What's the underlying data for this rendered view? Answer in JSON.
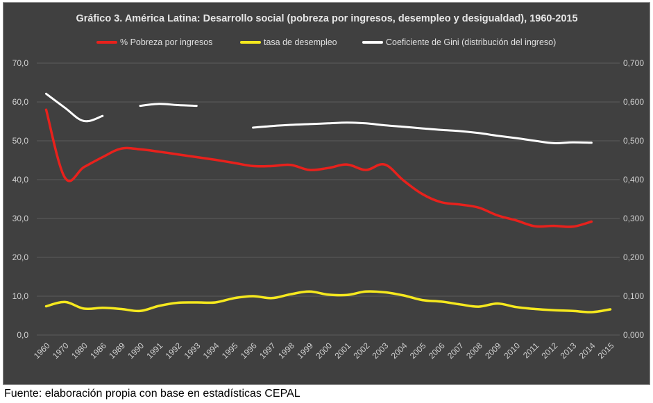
{
  "chart_data": {
    "type": "line",
    "title": "Gráfico 3. América Latina: Desarrollo social (pobreza por ingresos, desempleo y desigualdad), 1960-2015",
    "categories": [
      "1960",
      "1970",
      "1980",
      "1986",
      "1989",
      "1990",
      "1991",
      "1992",
      "1993",
      "1994",
      "1995",
      "1996",
      "1997",
      "1998",
      "1999",
      "2000",
      "2001",
      "2002",
      "2003",
      "2004",
      "2005",
      "2006",
      "2007",
      "2008",
      "2009",
      "2010",
      "2011",
      "2012",
      "2013",
      "2014",
      "2015"
    ],
    "y_left": {
      "min": 0,
      "max": 70,
      "step": 10,
      "tick_labels": [
        "0,0",
        "10,0",
        "20,0",
        "30,0",
        "40,0",
        "50,0",
        "60,0",
        "70,0"
      ]
    },
    "y_right": {
      "min": 0,
      "max": 0.7,
      "step": 0.1,
      "tick_labels": [
        "0,000",
        "0,100",
        "0,200",
        "0,300",
        "0,400",
        "0,500",
        "0,600",
        "0,700"
      ]
    },
    "grid": "horizontal",
    "legend_position": "top",
    "series": [
      {
        "name": "% Pobreza por ingresos",
        "axis": "left",
        "color": "#e8211c",
        "values": [
          58.0,
          40.5,
          43.2,
          45.8,
          48.0,
          47.8,
          47.2,
          46.5,
          45.8,
          45.1,
          44.3,
          43.5,
          43.5,
          43.8,
          42.5,
          43.0,
          43.9,
          42.5,
          43.9,
          39.8,
          36.3,
          34.2,
          33.6,
          32.8,
          30.8,
          29.5,
          28.0,
          28.1,
          27.9,
          29.2,
          null
        ],
        "style": "smooth"
      },
      {
        "name": "tasa de desempleo",
        "axis": "left",
        "color": "#f5e81e",
        "values": [
          7.4,
          8.5,
          6.8,
          7.0,
          6.7,
          6.2,
          7.5,
          8.3,
          8.4,
          8.4,
          9.5,
          10.0,
          9.5,
          10.5,
          11.2,
          10.4,
          10.3,
          11.2,
          11.0,
          10.2,
          9.0,
          8.6,
          7.9,
          7.3,
          8.1,
          7.2,
          6.7,
          6.4,
          6.2,
          5.9,
          6.6
        ],
        "style": "smooth"
      },
      {
        "name": "Coeficiente de Gini (distribución del ingreso)",
        "axis": "right",
        "color": "#ffffff",
        "segments": [
          {
            "categories": [
              "1960",
              "1970",
              "1980",
              "1986"
            ],
            "values": [
              0.621,
              0.585,
              0.551,
              0.564
            ]
          },
          {
            "categories": [
              "1990",
              "1991",
              "1992",
              "1993"
            ],
            "values": [
              0.59,
              0.595,
              0.592,
              0.59
            ]
          },
          {
            "categories": [
              "1996",
              "1997",
              "1998",
              "1999",
              "2000",
              "2001",
              "2002",
              "2003",
              "2004",
              "2005",
              "2006",
              "2007",
              "2008",
              "2009",
              "2010",
              "2011",
              "2012",
              "2013",
              "2014"
            ],
            "values": [
              0.534,
              0.538,
              0.541,
              0.543,
              0.545,
              0.547,
              0.545,
              0.54,
              0.536,
              0.532,
              0.528,
              0.525,
              0.52,
              0.513,
              0.507,
              0.5,
              0.494,
              0.496,
              0.495
            ]
          }
        ],
        "style": "smooth"
      }
    ]
  },
  "source_note": "Fuente: elaboración propia con base en estadísticas CEPAL"
}
